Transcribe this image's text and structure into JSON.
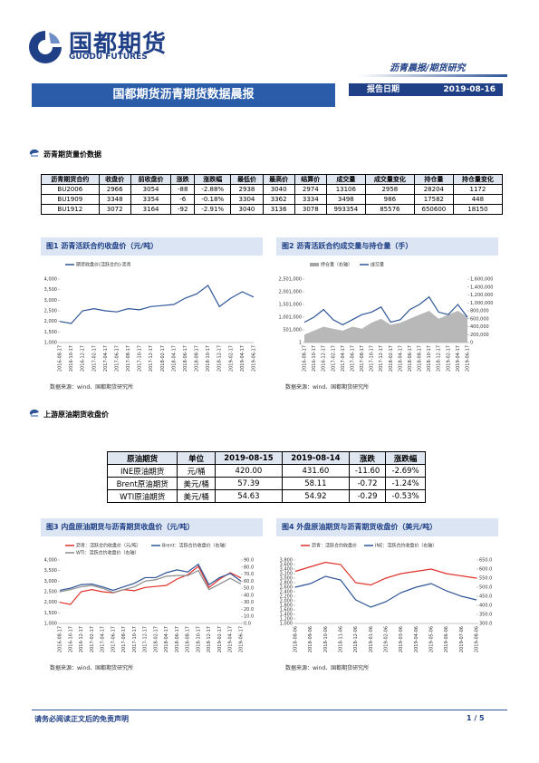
{
  "header": {
    "logo_cn": "国都期货",
    "logo_en": "GUODU FUTURES",
    "category": "沥青晨报/期货研究",
    "title": "国都期货沥青期货数据晨报",
    "date_label": "报告日期",
    "date": "2019-08-16"
  },
  "section1": {
    "heading": "沥青期货量价数据",
    "table": {
      "columns": [
        "沥青期货合约",
        "收盘价",
        "前收盘价",
        "涨跌",
        "涨跌幅",
        "最低价",
        "最高价",
        "结算价",
        "成交量",
        "成交量变化",
        "持仓量",
        "持仓量变化"
      ],
      "rows": [
        [
          "BU2006",
          "2966",
          "3054",
          "-88",
          "-2.88%",
          "2938",
          "3040",
          "2974",
          "13106",
          "2958",
          "28204",
          "1172"
        ],
        [
          "BU1909",
          "3348",
          "3354",
          "-6",
          "-0.18%",
          "3304",
          "3362",
          "3334",
          "3498",
          "986",
          "17582",
          "448"
        ],
        [
          "BU1912",
          "3072",
          "3164",
          "-92",
          "-2.91%",
          "3040",
          "3136",
          "3078",
          "993354",
          "85576",
          "650600",
          "18150"
        ]
      ]
    }
  },
  "section2": {
    "heading": "上游原油期货收盘价",
    "table": {
      "columns": [
        "原油期货",
        "单位",
        "2019-08-15",
        "2019-08-14",
        "涨跌",
        "涨跌幅"
      ],
      "rows": [
        [
          "INE原油期货",
          "元/桶",
          "420.00",
          "431.60",
          "-11.60",
          "-2.69%"
        ],
        [
          "Brent原油期货",
          "美元/桶",
          "57.39",
          "58.11",
          "-0.72",
          "-1.24%"
        ],
        [
          "WTI原油期货",
          "美元/桶",
          "54.63",
          "54.92",
          "-0.29",
          "-0.53%"
        ]
      ]
    }
  },
  "chart_data": [
    {
      "type": "line",
      "title": "图1 沥青活跃合约收盘价（元/吨）",
      "note": "数据来源：wind、国都期货研究所",
      "categories": [
        "2016-08-17",
        "2016-10-17",
        "2016-12-17",
        "2017-02-17",
        "2017-04-17",
        "2017-06-17",
        "2017-08-17",
        "2017-10-17",
        "2017-12-17",
        "2018-02-17",
        "2018-04-17",
        "2018-06-17",
        "2018-08-17",
        "2018-10-17",
        "2018-12-17",
        "2019-02-17",
        "2019-04-17",
        "2019-06-17"
      ],
      "series": [
        {
          "name": "期货收盘价(活跃合约):沥青",
          "color": "#2e5597",
          "values": [
            2000,
            1900,
            2500,
            2600,
            2500,
            2450,
            2600,
            2550,
            2700,
            2750,
            2800,
            3100,
            3300,
            3700,
            2700,
            3100,
            3400,
            3150
          ]
        }
      ],
      "ylim": [
        1000,
        4000
      ],
      "yticks": [
        {
          "value": 1000,
          "label": "1,000"
        },
        {
          "value": 1500,
          "label": "1,500"
        },
        {
          "value": 2000,
          "label": "2,000"
        },
        {
          "value": 2500,
          "label": "2,500"
        },
        {
          "value": 3000,
          "label": "3,000"
        },
        {
          "value": 3500,
          "label": "3,500"
        },
        {
          "value": 4000,
          "label": "4,000"
        }
      ]
    },
    {
      "type": "line",
      "title": "图2 沥青活跃合约成交量与持仓量（手）",
      "note": "数据来源：wind、国都期货研究所",
      "categories": [
        "2016-08-17",
        "2016-10-17",
        "2016-12-17",
        "2017-02-17",
        "2017-04-17",
        "2017-06-17",
        "2017-08-17",
        "2017-10-17",
        "2017-12-17",
        "2018-02-17",
        "2018-04-17",
        "2018-06-17",
        "2018-08-17",
        "2018-10-17",
        "2018-12-17",
        "2019-02-17",
        "2019-04-17",
        "2019-06-17"
      ],
      "series": [
        {
          "name": "持仓量（右轴）",
          "color": "#a6a6a6",
          "kind": "area",
          "axis": "y2",
          "values": [
            200000,
            300000,
            400000,
            350000,
            300000,
            400000,
            350000,
            500000,
            600000,
            450000,
            500000,
            600000,
            700000,
            800000,
            600000,
            700000,
            800000,
            650000
          ]
        },
        {
          "name": "成交量",
          "color": "#2e5597",
          "values": [
            800000,
            1000000,
            1300000,
            900000,
            700000,
            900000,
            1100000,
            1200000,
            1400000,
            800000,
            900000,
            1300000,
            1500000,
            1800000,
            1200000,
            1100000,
            1500000,
            1000000
          ]
        }
      ],
      "ylim": [
        1,
        2501000
      ],
      "yticks": [
        1,
        {
          "value": 501000,
          "label": "501,000"
        },
        {
          "value": 1001000,
          "label": "1,001,000"
        },
        {
          "value": 1501000,
          "label": "1,501,000"
        },
        {
          "value": 2001000,
          "label": "2,001,000"
        },
        {
          "value": 2501000,
          "label": "2,501,000"
        }
      ],
      "y2lim": [
        0,
        1600000
      ],
      "y2ticks": [
        0,
        {
          "value": 200000,
          "label": "200,000"
        },
        {
          "value": 400000,
          "label": "400,000"
        },
        {
          "value": 600000,
          "label": "600,000"
        },
        {
          "value": 800000,
          "label": "800,000"
        },
        {
          "value": 1000000,
          "label": "1,000,000"
        },
        {
          "value": 1200000,
          "label": "1,200,000"
        },
        {
          "value": 1400000,
          "label": "1,400,000"
        },
        {
          "value": 1600000,
          "label": "1,600,000"
        }
      ]
    },
    {
      "type": "line",
      "title": "图3 内盘原油期货与沥青期货收盘价（元/吨）",
      "note": "数据来源：wind、国都期货研究所",
      "categories": [
        "2016-08-17",
        "2016-10-17",
        "2016-12-17",
        "2017-02-17",
        "2017-04-17",
        "2017-06-17",
        "2017-08-17",
        "2017-10-17",
        "2017-12-17",
        "2018-02-17",
        "2018-04-17",
        "2018-06-17",
        "2018-08-17",
        "2018-10-17",
        "2018-12-17",
        "2019-02-17",
        "2019-04-17",
        "2019-06-17"
      ],
      "series": [
        {
          "name": "沥青：活跃合约收盘价（元/吨）",
          "color": "#e0302a",
          "values": [
            2000,
            1900,
            2500,
            2600,
            2500,
            2450,
            2600,
            2550,
            2700,
            2750,
            2800,
            3100,
            3300,
            3700,
            2700,
            3100,
            3400,
            3150
          ]
        },
        {
          "name": "Brent：活跃合约收盘价（右轴）",
          "color": "#2e5597",
          "axis": "y2",
          "values": [
            47,
            50,
            55,
            56,
            52,
            47,
            52,
            57,
            65,
            65,
            72,
            76,
            73,
            84,
            55,
            65,
            71,
            60
          ]
        },
        {
          "name": "WTI：活跃合约收盘价（右轴）",
          "color": "#8c8c8c",
          "axis": "y2",
          "values": [
            45,
            48,
            52,
            54,
            50,
            44,
            48,
            52,
            60,
            62,
            67,
            68,
            68,
            75,
            48,
            56,
            64,
            56
          ]
        }
      ],
      "ylim": [
        1000,
        4000
      ],
      "yticks": [
        {
          "value": 1000,
          "label": "1,000"
        },
        {
          "value": 1500,
          "label": "1,500"
        },
        {
          "value": 2000,
          "label": "2,000"
        },
        {
          "value": 2500,
          "label": "2,500"
        },
        {
          "value": 3000,
          "label": "3,000"
        },
        {
          "value": 3500,
          "label": "3,500"
        },
        {
          "value": 4000,
          "label": "4,000"
        }
      ],
      "y2lim": [
        0,
        90
      ],
      "y2ticks": [
        {
          "value": 0,
          "label": "0.0"
        },
        {
          "value": 10,
          "label": "10.0"
        },
        {
          "value": 20,
          "label": "20.0"
        },
        {
          "value": 30,
          "label": "30.0"
        },
        {
          "value": 40,
          "label": "40.0"
        },
        {
          "value": 50,
          "label": "50.0"
        },
        {
          "value": 60,
          "label": "60.0"
        },
        {
          "value": 70,
          "label": "70.0"
        },
        {
          "value": 80,
          "label": "80.0"
        },
        {
          "value": 90,
          "label": "90.0"
        }
      ]
    },
    {
      "type": "line",
      "title": "图4 外盘原油期货与沥青期货收盘价（美元/吨）",
      "note": "数据来源：wind、国都期货研究所",
      "categories": [
        "2018-08-06",
        "2018-09-06",
        "2018-10-06",
        "2018-11-06",
        "2018-12-06",
        "2019-01-06",
        "2019-02-06",
        "2019-03-06",
        "2019-04-06",
        "2019-05-06",
        "2019-06-06",
        "2019-07-06",
        "2019-08-06"
      ],
      "series": [
        {
          "name": "沥青：活跃合约收盘价",
          "color": "#e0302a",
          "values": [
            3300,
            3500,
            3700,
            3600,
            2800,
            2700,
            3000,
            3200,
            3300,
            3400,
            3200,
            3100,
            3000
          ]
        },
        {
          "name": "INE：活跃合约收盘价（右轴）",
          "color": "#2e5597",
          "axis": "y2",
          "values": [
            500,
            520,
            560,
            540,
            430,
            390,
            420,
            470,
            500,
            520,
            480,
            450,
            430
          ]
        }
      ],
      "ylim": [
        1000,
        3800
      ],
      "yticks": [
        {
          "value": 1000,
          "label": "1,000"
        },
        {
          "value": 1200,
          "label": "1,200"
        },
        {
          "value": 1400,
          "label": "1,400"
        },
        {
          "value": 1600,
          "label": "1,600"
        },
        {
          "value": 1800,
          "label": "1,800"
        },
        {
          "value": 2000,
          "label": "2,000"
        },
        {
          "value": 2200,
          "label": "2,200"
        },
        {
          "value": 2400,
          "label": "2,400"
        },
        {
          "value": 2600,
          "label": "2,600"
        },
        {
          "value": 2800,
          "label": "2,800"
        },
        {
          "value": 3000,
          "label": "3,000"
        },
        {
          "value": 3200,
          "label": "3,200"
        },
        {
          "value": 3400,
          "label": "3,400"
        },
        {
          "value": 3600,
          "label": "3,600"
        },
        {
          "value": 3800,
          "label": "3,800"
        }
      ],
      "y2lim": [
        300,
        650
      ],
      "y2ticks": [
        {
          "value": 300,
          "label": "300.0"
        },
        {
          "value": 350,
          "label": "350.0"
        },
        {
          "value": 400,
          "label": "400.0"
        },
        {
          "value": 450,
          "label": "450.0"
        },
        {
          "value": 500,
          "label": "500.0"
        },
        {
          "value": 550,
          "label": "550.0"
        },
        {
          "value": 600,
          "label": "600.0"
        },
        {
          "value": 650,
          "label": "650.0"
        }
      ]
    }
  ],
  "footer": {
    "disclaimer": "请务必阅读正文后的免责声明",
    "page": "1 / 5"
  }
}
